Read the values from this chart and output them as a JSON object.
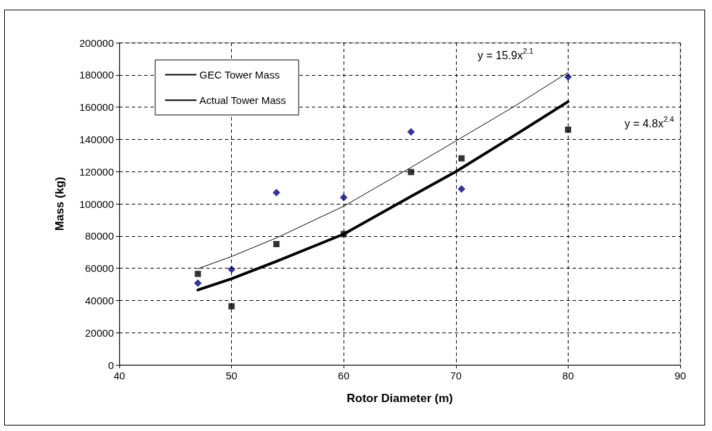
{
  "chart_data": {
    "type": "scatter",
    "xlabel": "Rotor Diameter (m)",
    "ylabel": "Mass (kg)",
    "xlim": [
      40,
      90
    ],
    "xticks": [
      40,
      50,
      60,
      70,
      80,
      90
    ],
    "ylim": [
      0,
      200000
    ],
    "yticks": [
      0,
      20000,
      40000,
      60000,
      80000,
      100000,
      120000,
      140000,
      160000,
      180000,
      200000
    ],
    "grid": true,
    "legend": "top left",
    "series": [
      {
        "name": "GEC Tower Mass",
        "type": "line",
        "color": "#000000",
        "line_style": "solid",
        "marker": "none",
        "x": [
          47,
          50,
          54,
          60,
          66,
          70,
          75,
          80
        ],
        "values": [
          46500,
          53500,
          64300,
          81200,
          104600,
          120000,
          141500,
          163400
        ]
      },
      {
        "name": "Actual Tower Mass",
        "type": "line",
        "color": "#000000",
        "line_style": "solid",
        "marker": "none",
        "x": [
          47,
          50,
          54,
          60,
          66,
          70,
          75,
          80
        ],
        "values": [
          59700,
          67300,
          78800,
          98500,
          122600,
          139000,
          159600,
          181500
        ]
      },
      {
        "type": "scatter",
        "color": "#000000",
        "marker": "square",
        "x": [
          47,
          50,
          54,
          60,
          66,
          70.5,
          80
        ],
        "values": [
          56500,
          36400,
          75000,
          81200,
          119700,
          128200,
          146000
        ]
      },
      {
        "type": "scatter",
        "color": "#000080",
        "marker": "diamond",
        "x": [
          47,
          50,
          54,
          60,
          66,
          70.5,
          80
        ],
        "values": [
          50800,
          59300,
          106900,
          103900,
          144700,
          109200,
          178700
        ]
      }
    ],
    "annotations": [
      "y = 15.9x$^{2.1}$",
      "y = 4.8x$^{2.4}$"
    ]
  }
}
